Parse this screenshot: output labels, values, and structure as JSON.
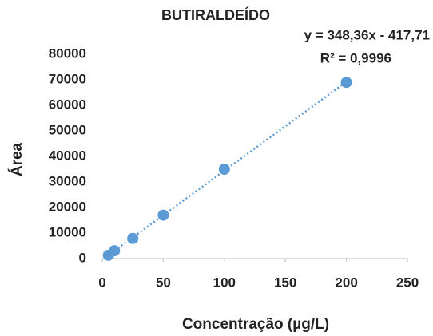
{
  "chart_data": {
    "type": "scatter",
    "title": "BUTIRALDEÍDO",
    "annotations": [
      "y = 348,36x - 417,71",
      "R² = 0,9996"
    ],
    "x_label": "Concentração (µg/L)",
    "y_label": "Área",
    "x": [
      5,
      10,
      25,
      50,
      100,
      200
    ],
    "values": [
      1300,
      3100,
      7900,
      17000,
      35000,
      69000
    ],
    "color": "#5b9bd5",
    "trendline": {
      "x": [
        5,
        200
      ],
      "values": [
        1300,
        69250
      ],
      "color": "#5b9bd5"
    },
    "xlim": [
      0,
      250
    ],
    "xticks": [
      0,
      50,
      100,
      150,
      200,
      250
    ],
    "ylim": [
      0,
      80000
    ],
    "yticks": [
      0,
      10000,
      20000,
      30000,
      40000,
      50000,
      60000,
      70000,
      80000
    ],
    "grid": false
  }
}
